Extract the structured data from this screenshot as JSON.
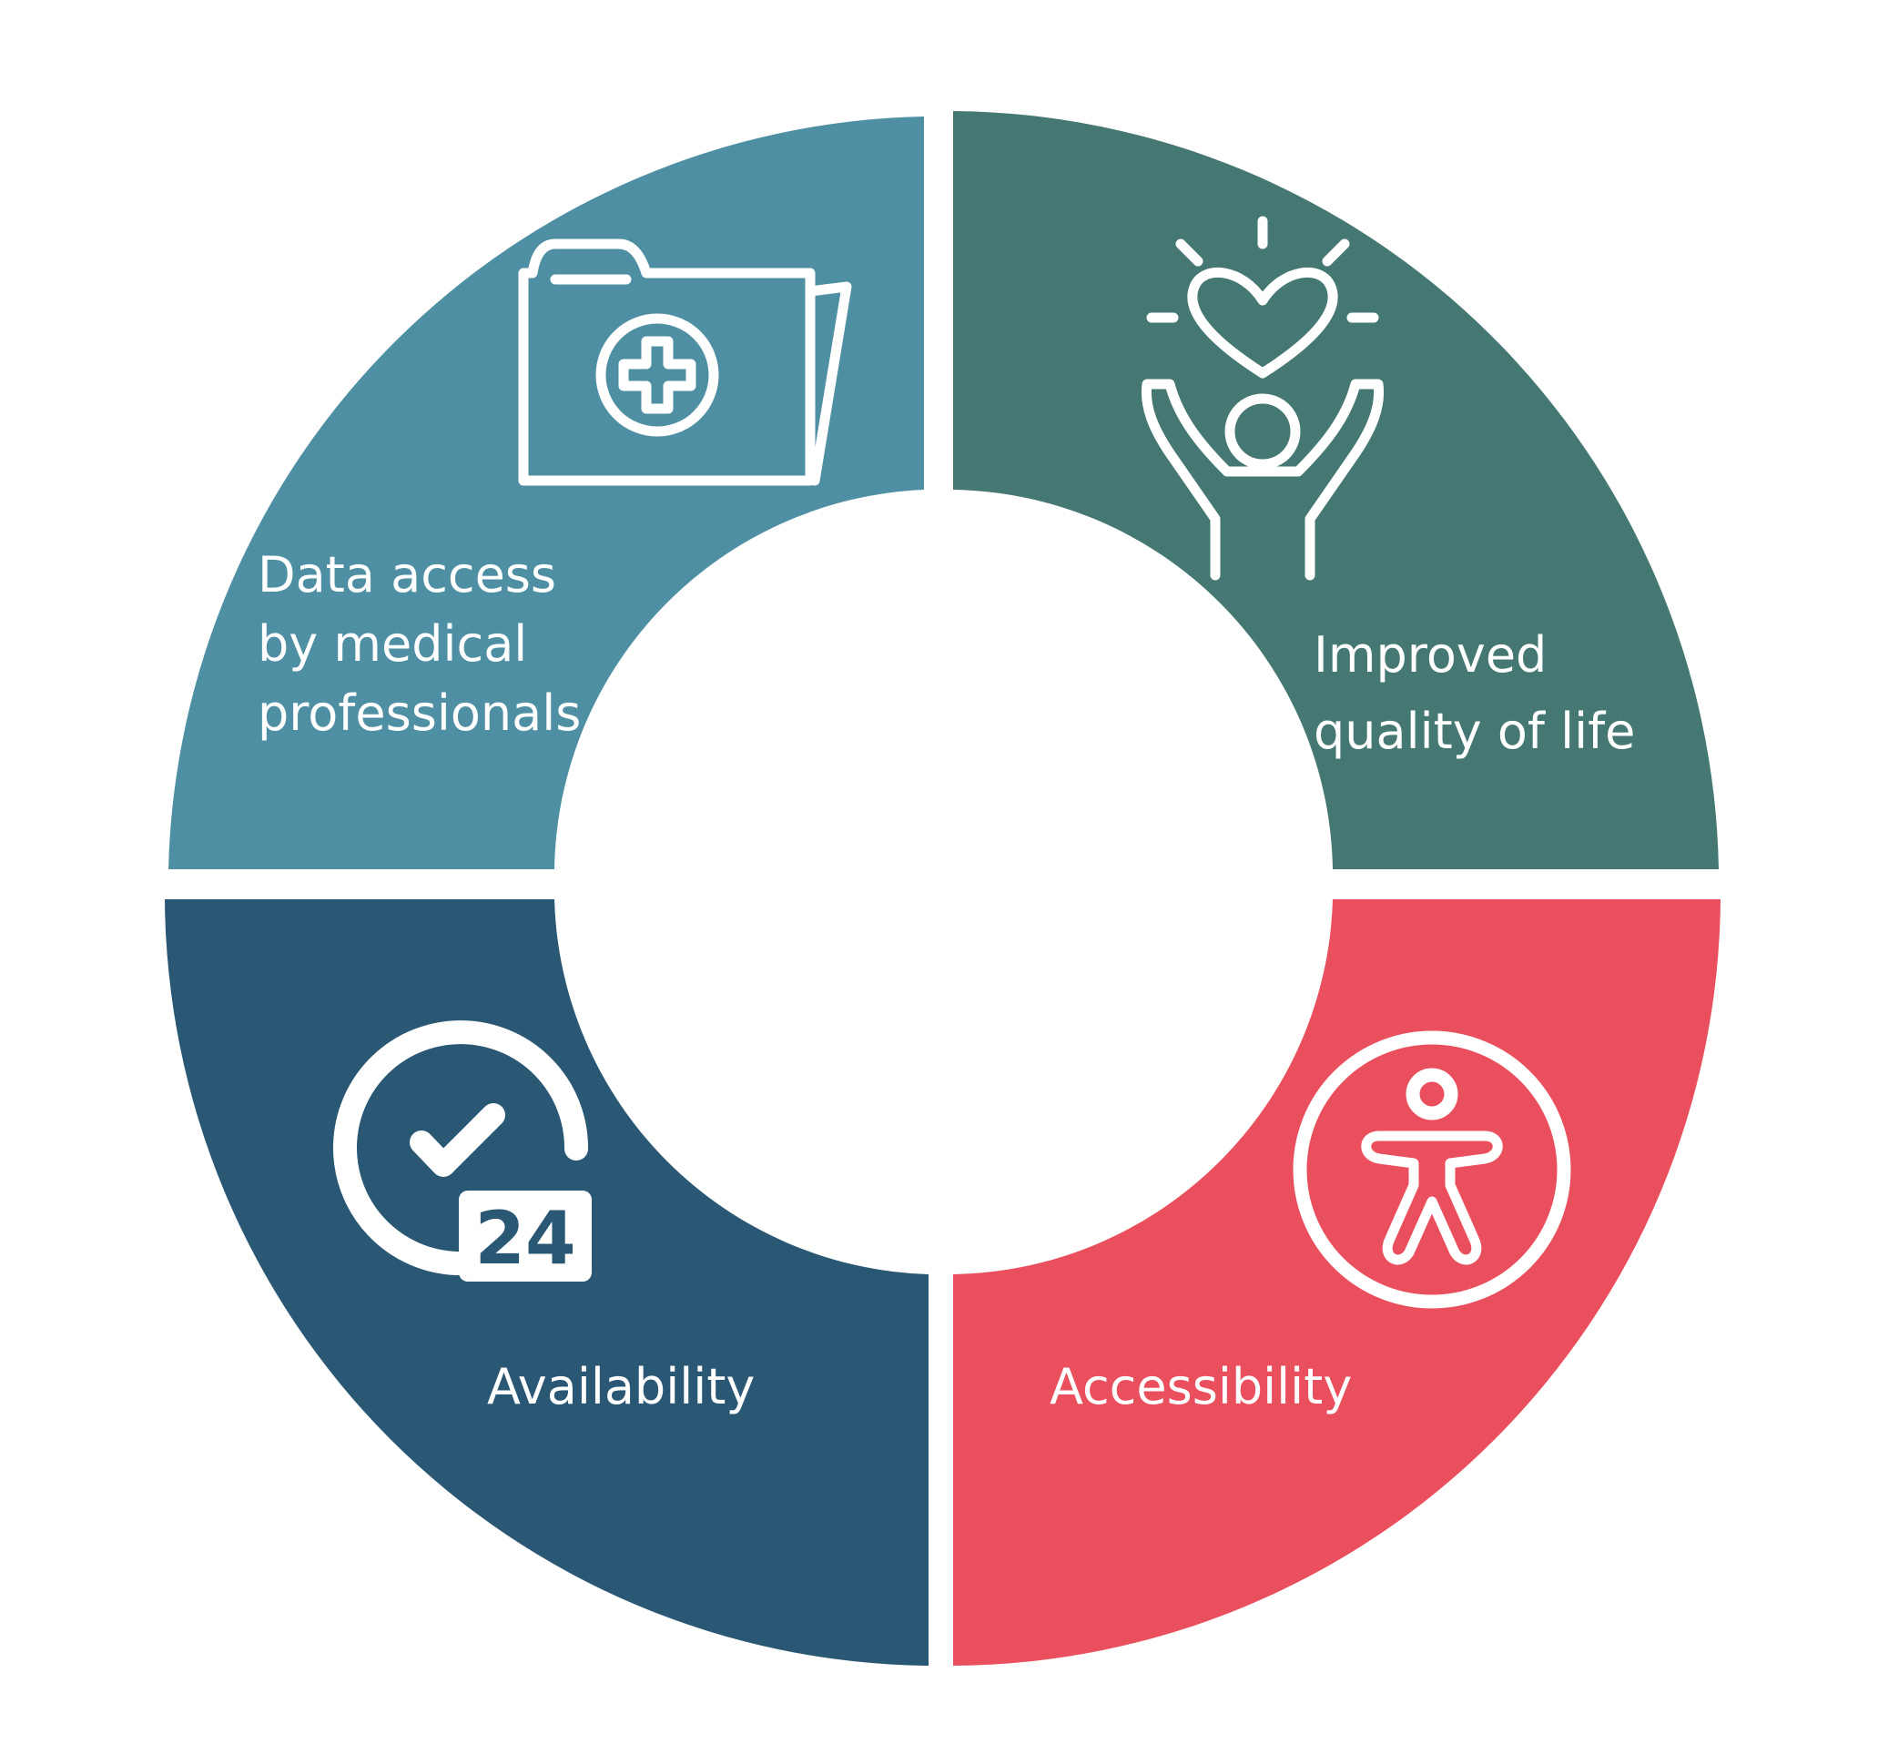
{
  "segments": [
    {
      "id": "data-access",
      "label_lines": [
        "Data access",
        "by medical",
        "professionals"
      ],
      "color": "#4F8FA4",
      "icon": "medical-folder-icon"
    },
    {
      "id": "quality-of-life",
      "label_lines": [
        "Improved",
        "quality of life"
      ],
      "color": "#467873",
      "icon": "hands-heart-icon"
    },
    {
      "id": "availability",
      "label_lines": [
        "Availability"
      ],
      "color": "#2A5774",
      "icon": "clock-24-icon",
      "icon_badge_text": "24"
    },
    {
      "id": "accessibility",
      "label_lines": [
        "Accessibility"
      ],
      "color": "#EA4F5D",
      "icon": "accessibility-person-icon"
    }
  ]
}
